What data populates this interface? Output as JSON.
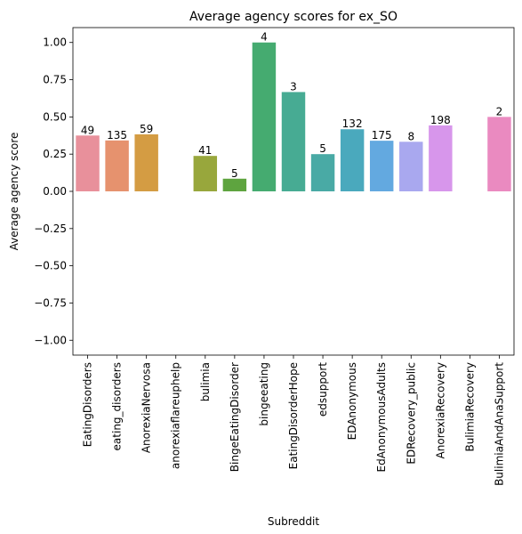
{
  "chart_data": {
    "type": "bar",
    "title": "Average agency scores for ex_SO",
    "xlabel": "Subreddit",
    "ylabel": "Average agency score",
    "ylim": [
      -1.1,
      1.1
    ],
    "yticks": [
      -1.0,
      -0.75,
      -0.5,
      -0.25,
      0.0,
      0.25,
      0.5,
      0.75,
      1.0
    ],
    "ytick_labels": [
      "−1.00",
      "−0.75",
      "−0.50",
      "−0.25",
      "0.00",
      "0.25",
      "0.50",
      "0.75",
      "1.00"
    ],
    "grid": false,
    "categories": [
      "EatingDisorders",
      "eating_disorders",
      "AnorexiaNervosa",
      "anorexiaflareuphelp",
      "bulimia",
      "BingeEatingDisorder",
      "bingeeating",
      "EatingDisorderHope",
      "edsupport",
      "EDAnonymous",
      "EdAnonymousAdults",
      "EDRecovery_public",
      "AnorexiaRecovery",
      "BulimiaRecovery",
      "BulimiaAndAnaSupport"
    ],
    "values": [
      0.375,
      0.342,
      0.383,
      null,
      0.238,
      0.085,
      1.0,
      0.667,
      0.25,
      0.417,
      0.34,
      0.333,
      0.443,
      null,
      0.5
    ],
    "labels": [
      "49",
      "135",
      "59",
      null,
      "41",
      "5",
      "4",
      "3",
      "5",
      "132",
      "175",
      "8",
      "198",
      null,
      "2"
    ],
    "colors": [
      "#e8909b",
      "#e6926e",
      "#d49c43",
      "#b8a23f",
      "#98a73c",
      "#5ea43f",
      "#45ab70",
      "#47ab93",
      "#49aaa5",
      "#4aa9bd",
      "#63a9e0",
      "#a9a8ef",
      "#d796eb",
      "#ea87d8",
      "#ea8ac0"
    ]
  }
}
